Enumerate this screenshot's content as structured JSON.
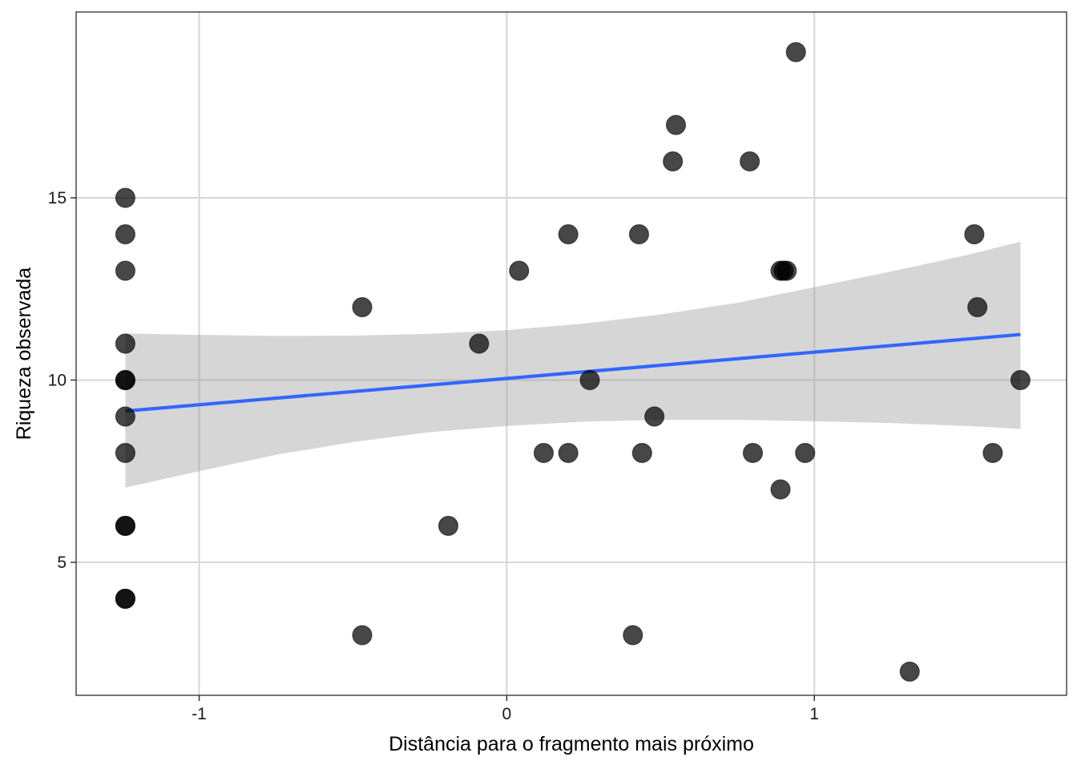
{
  "chart_data": {
    "type": "scatter",
    "title": "",
    "xlabel": "Distância para o fragmento mais próximo",
    "ylabel": "Riqueza observada",
    "xlim": [
      -1.4,
      1.82
    ],
    "ylim": [
      1.35,
      20.1
    ],
    "x_ticks": [
      -1,
      0,
      1
    ],
    "y_ticks": [
      5,
      10,
      15
    ],
    "x_tick_labels": [
      "-1",
      "0",
      "1"
    ],
    "y_tick_labels": [
      "5",
      "10",
      "15"
    ],
    "grid": true,
    "legend": "none",
    "colors": {
      "point": "#000000",
      "point_opacity": 0.72,
      "fit_line": "#3366ff",
      "ribbon": "#999999",
      "ribbon_opacity": 0.4,
      "grid": "#d6d6d6",
      "frame": "#1a1a1a"
    },
    "points": [
      {
        "x": -1.24,
        "y": 15
      },
      {
        "x": -1.24,
        "y": 14
      },
      {
        "x": -1.24,
        "y": 13
      },
      {
        "x": -1.24,
        "y": 11
      },
      {
        "x": -1.24,
        "y": 10
      },
      {
        "x": -1.24,
        "y": 10
      },
      {
        "x": -1.24,
        "y": 9
      },
      {
        "x": -1.24,
        "y": 8
      },
      {
        "x": -1.24,
        "y": 6
      },
      {
        "x": -1.24,
        "y": 6
      },
      {
        "x": -1.24,
        "y": 4
      },
      {
        "x": -1.24,
        "y": 4
      },
      {
        "x": -0.47,
        "y": 12
      },
      {
        "x": -0.47,
        "y": 3
      },
      {
        "x": -0.19,
        "y": 6
      },
      {
        "x": -0.09,
        "y": 11
      },
      {
        "x": 0.04,
        "y": 13
      },
      {
        "x": 0.12,
        "y": 8
      },
      {
        "x": 0.2,
        "y": 14
      },
      {
        "x": 0.2,
        "y": 8
      },
      {
        "x": 0.27,
        "y": 10
      },
      {
        "x": 0.41,
        "y": 3
      },
      {
        "x": 0.43,
        "y": 14
      },
      {
        "x": 0.44,
        "y": 8
      },
      {
        "x": 0.48,
        "y": 9
      },
      {
        "x": 0.54,
        "y": 16
      },
      {
        "x": 0.55,
        "y": 17
      },
      {
        "x": 0.79,
        "y": 16
      },
      {
        "x": 0.8,
        "y": 8
      },
      {
        "x": 0.89,
        "y": 7
      },
      {
        "x": 0.89,
        "y": 13
      },
      {
        "x": 0.91,
        "y": 13
      },
      {
        "x": 0.9,
        "y": 13
      },
      {
        "x": 0.94,
        "y": 19
      },
      {
        "x": 0.97,
        "y": 8
      },
      {
        "x": 1.31,
        "y": 2
      },
      {
        "x": 1.52,
        "y": 14
      },
      {
        "x": 1.53,
        "y": 12
      },
      {
        "x": 1.58,
        "y": 8
      },
      {
        "x": 1.67,
        "y": 10
      }
    ],
    "fit_line": [
      {
        "x": -1.24,
        "y": 9.15
      },
      {
        "x": 1.67,
        "y": 11.25
      }
    ],
    "confidence_band": [
      {
        "x": -1.24,
        "lower": 7.05,
        "upper": 11.28
      },
      {
        "x": -1.0,
        "lower": 7.5,
        "upper": 11.24
      },
      {
        "x": -0.75,
        "lower": 7.95,
        "upper": 11.21
      },
      {
        "x": -0.5,
        "lower": 8.3,
        "upper": 11.22
      },
      {
        "x": -0.25,
        "lower": 8.57,
        "upper": 11.27
      },
      {
        "x": 0.0,
        "lower": 8.74,
        "upper": 11.37
      },
      {
        "x": 0.25,
        "lower": 8.86,
        "upper": 11.55
      },
      {
        "x": 0.5,
        "lower": 8.91,
        "upper": 11.8
      },
      {
        "x": 0.75,
        "lower": 8.91,
        "upper": 12.12
      },
      {
        "x": 1.0,
        "lower": 8.87,
        "upper": 12.55
      },
      {
        "x": 1.25,
        "lower": 8.82,
        "upper": 12.98
      },
      {
        "x": 1.5,
        "lower": 8.74,
        "upper": 13.44
      },
      {
        "x": 1.67,
        "lower": 8.66,
        "upper": 13.8
      }
    ]
  }
}
